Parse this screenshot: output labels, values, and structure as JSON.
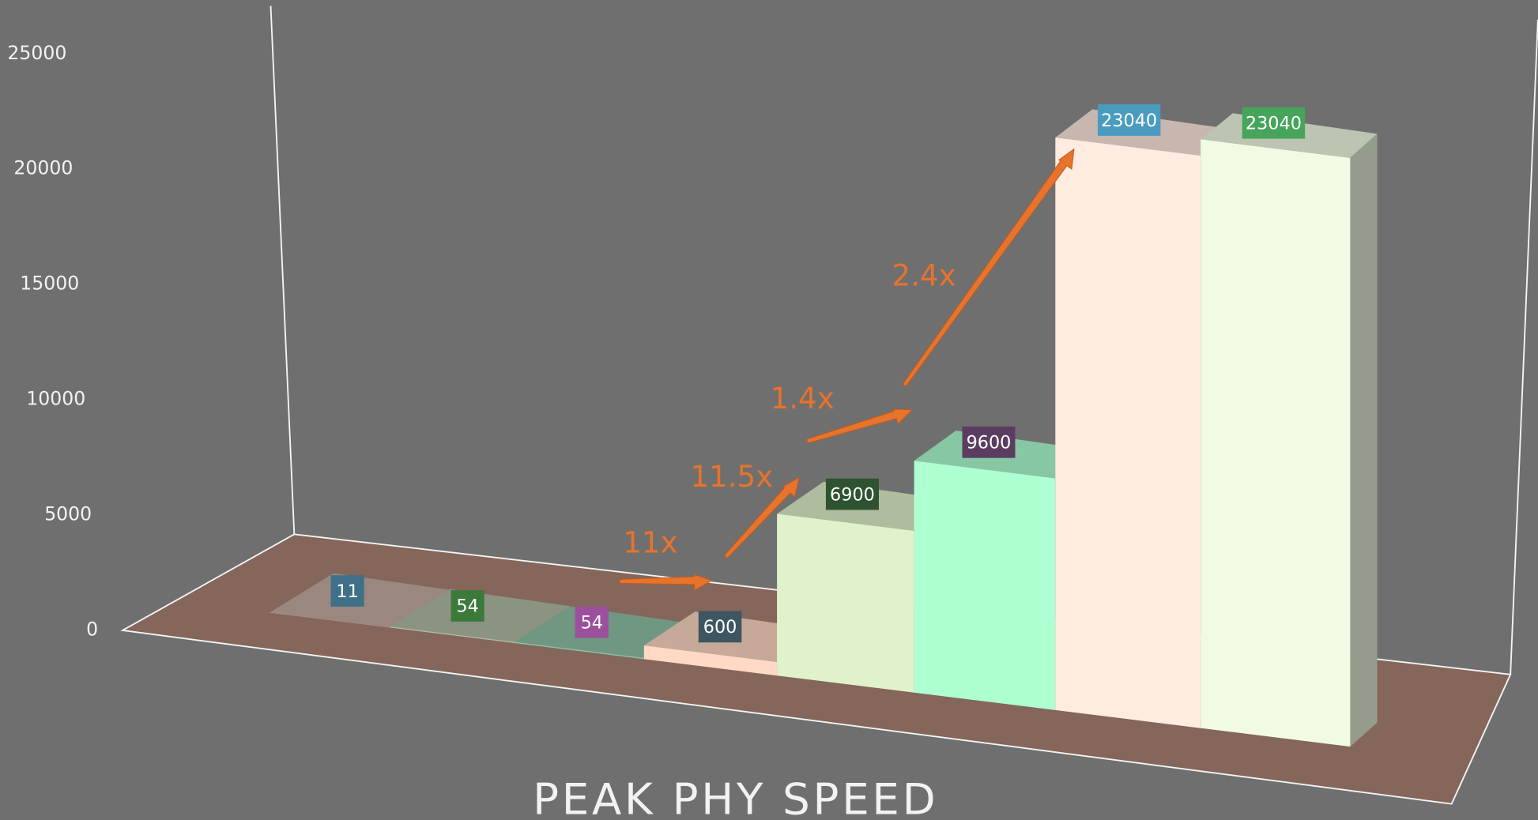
{
  "chart_data": {
    "type": "bar3d",
    "title": "PEAK PHY SPEED",
    "values": [
      11,
      54,
      54,
      600,
      6900,
      9600,
      23040,
      23040
    ],
    "colors": [
      "#c6aea4",
      "#b2bca8",
      "#8ec2a6",
      "#ffd9c4",
      "#e0f2ca",
      "#aeffd2",
      "#ffebdf",
      "#f1fbe4"
    ],
    "label_colors": [
      "#3f7087",
      "#3b7a3b",
      "#9c4f9c",
      "#3d5661",
      "#2e5232",
      "#5b3d62",
      "#4a9bc0",
      "#47a45b"
    ],
    "ylim": [
      0,
      25000
    ],
    "yticks": [
      0,
      5000,
      10000,
      15000,
      20000,
      25000
    ],
    "annotations": [
      "11x",
      "11.5x",
      "1.4x",
      "2.4x"
    ],
    "annotation_color": "#e8732a"
  }
}
